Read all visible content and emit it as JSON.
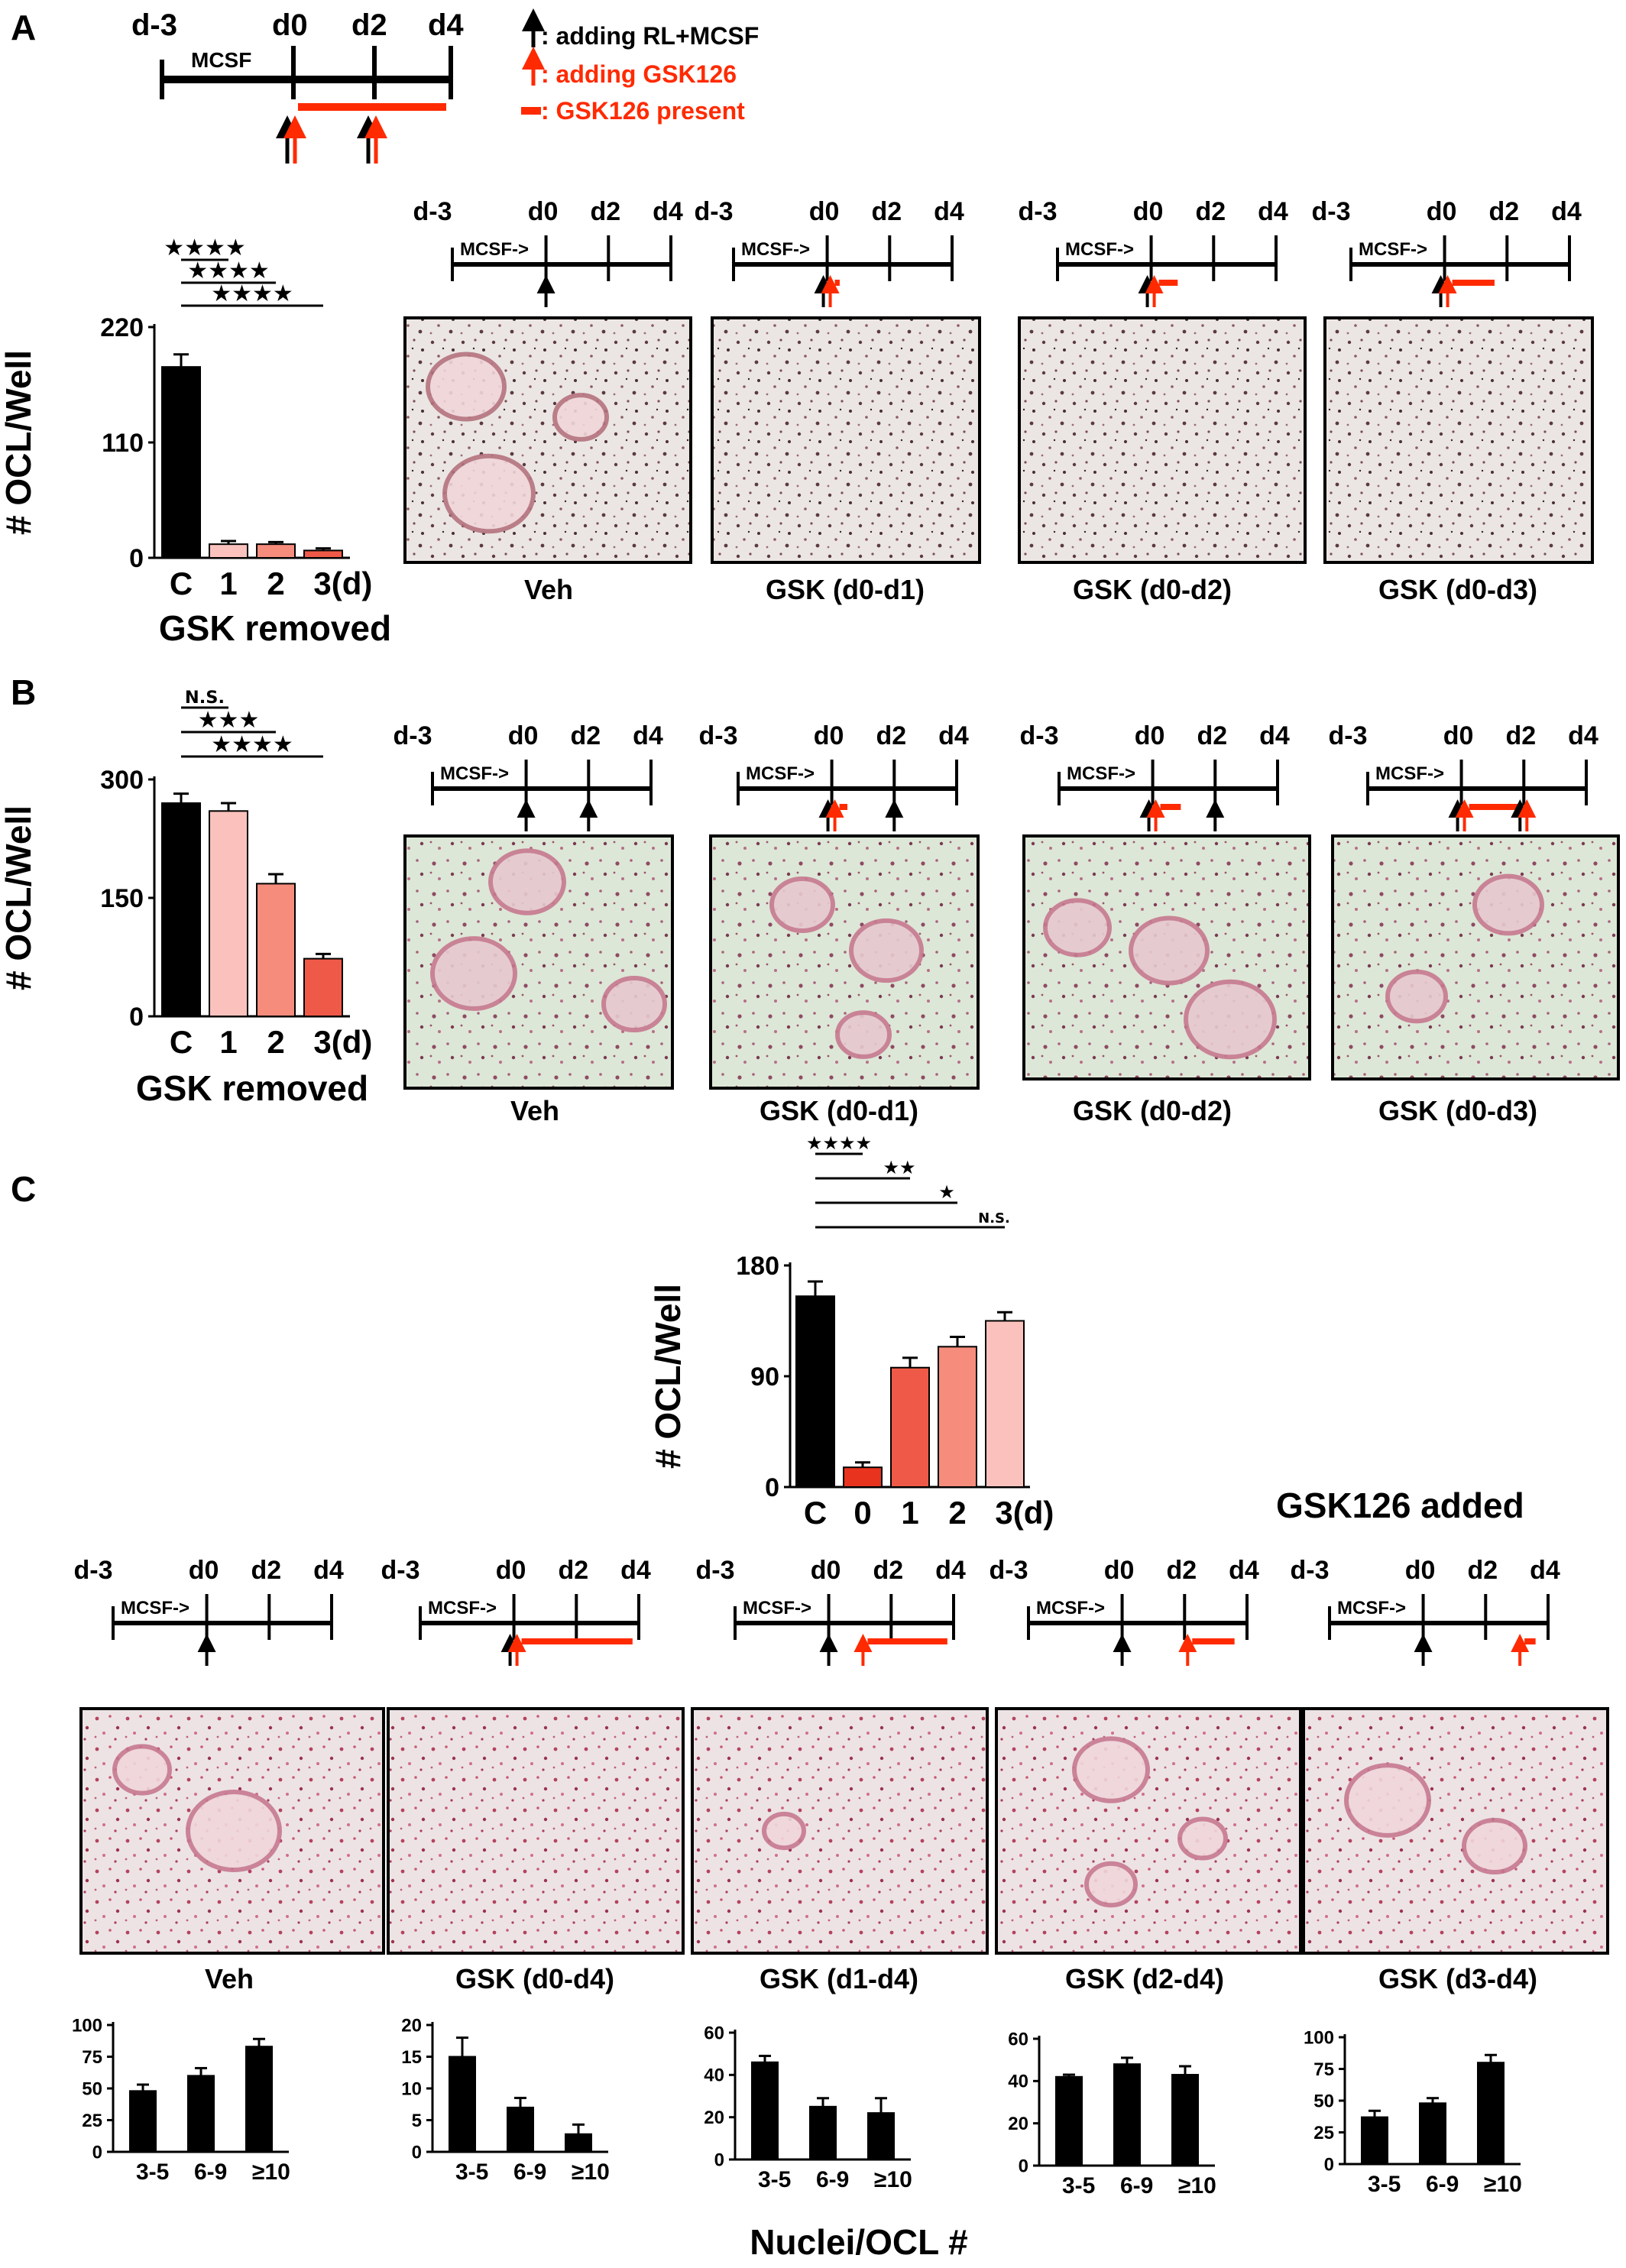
{
  "colors": {
    "black": "#000000",
    "red": "#ff2a00",
    "c_black": "#000000",
    "c_pink": "#fbc2bd",
    "c_salmon": "#f68c7c",
    "c_coral": "#ef5a48",
    "c_red": "#e8331f",
    "micro_A": "#ebe6e3",
    "micro_B": "#dfe9d6",
    "micro_C": "#ece2e4"
  },
  "panels": {
    "A": "A",
    "B": "B",
    "C": "C"
  },
  "legend": {
    "timeline": {
      "labels": [
        "d-3",
        "d0",
        "d2",
        "d4"
      ],
      "mcsf": "MCSF"
    },
    "items": [
      {
        "text": ": adding RL+MCSF",
        "color": "#000000",
        "icon": "black-arrow-icon"
      },
      {
        "text": ": adding GSK126",
        "color": "#ff2a00",
        "icon": "red-arrow-icon"
      },
      {
        "text": ": GSK126 present",
        "color": "#ff2a00",
        "icon": "red-bar-icon"
      }
    ]
  },
  "schematic": {
    "labels": [
      "d-3",
      "d0",
      "d2",
      "d4"
    ],
    "mcsf": "MCSF->"
  },
  "chart_data": [
    {
      "id": "A-bar",
      "type": "bar",
      "categories": [
        "C",
        "1",
        "2",
        "3(d)"
      ],
      "values": [
        182,
        13,
        13,
        7
      ],
      "errors": [
        12,
        3,
        2,
        2
      ],
      "colors": [
        "#000000",
        "#fbc2bd",
        "#f68c7c",
        "#ef5a48"
      ],
      "ylabel": "# OCL/Well",
      "yticks": [
        0,
        110,
        220
      ],
      "ylim": [
        0,
        220
      ],
      "xlabel": "GSK removed",
      "significance": [
        {
          "from": 0,
          "to": 1,
          "label": "★★★★"
        },
        {
          "from": 0,
          "to": 2,
          "label": "★★★★"
        },
        {
          "from": 0,
          "to": 3,
          "label": "★★★★"
        }
      ]
    },
    {
      "id": "B-bar",
      "type": "bar",
      "categories": [
        "C",
        "1",
        "2",
        "3(d)"
      ],
      "values": [
        270,
        260,
        168,
        73
      ],
      "errors": [
        12,
        10,
        12,
        6
      ],
      "colors": [
        "#000000",
        "#fbc2bd",
        "#f68c7c",
        "#ef5a48"
      ],
      "ylabel": "# OCL/Well",
      "yticks": [
        0,
        150,
        300
      ],
      "ylim": [
        0,
        300
      ],
      "xlabel": "GSK removed",
      "significance": [
        {
          "from": 0,
          "to": 1,
          "label": "N.S."
        },
        {
          "from": 0,
          "to": 2,
          "label": "★★★"
        },
        {
          "from": 0,
          "to": 3,
          "label": "★★★★"
        }
      ]
    },
    {
      "id": "C-bar",
      "type": "bar",
      "categories": [
        "C",
        "0",
        "1",
        "2",
        "3(d)"
      ],
      "values": [
        155,
        16,
        97,
        114,
        135
      ],
      "errors": [
        12,
        4,
        8,
        8,
        7
      ],
      "colors": [
        "#000000",
        "#e8331f",
        "#ef5a48",
        "#f68c7c",
        "#fbc2bd"
      ],
      "ylabel": "# OCL/Well",
      "yticks": [
        0,
        90,
        180
      ],
      "ylim": [
        0,
        180
      ],
      "xlabel": "GSK126 added",
      "significance": [
        {
          "from": 0,
          "to": 1,
          "label": "★★★★"
        },
        {
          "from": 0,
          "to": 2,
          "label": "★★"
        },
        {
          "from": 0,
          "to": 3,
          "label": "★"
        },
        {
          "from": 0,
          "to": 4,
          "label": "N.S."
        }
      ]
    },
    {
      "id": "C-n1",
      "type": "bar",
      "categories": [
        "3-5",
        "6-9",
        "≥10"
      ],
      "values": [
        48,
        60,
        83
      ],
      "errors": [
        5,
        6,
        6
      ],
      "yticks": [
        0,
        25,
        50,
        75,
        100
      ],
      "ylim": [
        0,
        100
      ]
    },
    {
      "id": "C-n2",
      "type": "bar",
      "categories": [
        "3-5",
        "6-9",
        "≥10"
      ],
      "values": [
        15,
        7,
        2.8
      ],
      "errors": [
        3,
        1.5,
        1.5
      ],
      "yticks": [
        0,
        5,
        10,
        15,
        20
      ],
      "ylim": [
        0,
        20
      ]
    },
    {
      "id": "C-n3",
      "type": "bar",
      "categories": [
        "3-5",
        "6-9",
        "≥10"
      ],
      "values": [
        46,
        25,
        22
      ],
      "errors": [
        3,
        4,
        7
      ],
      "yticks": [
        0,
        20,
        40,
        60
      ],
      "ylim": [
        0,
        60
      ]
    },
    {
      "id": "C-n4",
      "type": "bar",
      "categories": [
        "3-5",
        "6-9",
        "≥10"
      ],
      "values": [
        42,
        48,
        43
      ],
      "errors": [
        1,
        3,
        4
      ],
      "yticks": [
        0,
        20,
        40,
        60
      ],
      "ylim": [
        0,
        60
      ]
    },
    {
      "id": "C-n5",
      "type": "bar",
      "categories": [
        "3-5",
        "6-9",
        "≥10"
      ],
      "values": [
        37,
        48,
        80
      ],
      "errors": [
        5,
        4,
        6
      ],
      "yticks": [
        0,
        25,
        50,
        75,
        100
      ],
      "ylim": [
        0,
        100
      ]
    }
  ],
  "image_captions": {
    "A": [
      "Veh",
      "GSK (d0-d1)",
      "GSK (d0-d2)",
      "GSK (d0-d3)"
    ],
    "B": [
      "Veh",
      "GSK (d0-d1)",
      "GSK (d0-d2)",
      "GSK (d0-d3)"
    ],
    "C": [
      "Veh",
      "GSK (d0-d4)",
      "GSK (d1-d4)",
      "GSK (d2-d4)",
      "GSK (d3-d4)"
    ]
  },
  "nuclei_xlabel": "Nuclei/OCL #"
}
